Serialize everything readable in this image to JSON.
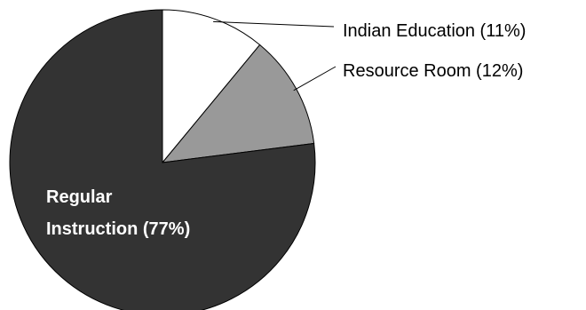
{
  "chart_data": {
    "type": "pie",
    "slices": [
      {
        "label": "Indian Education (11%)",
        "value": 11,
        "color": "#ffffff",
        "label_lines": [
          "Indian Education (11%)"
        ],
        "label_position": "outside"
      },
      {
        "label": "Resource Room (12%)",
        "value": 12,
        "color": "#999999",
        "label_lines": [
          "Resource Room (12%)"
        ],
        "label_position": "outside"
      },
      {
        "label": "Regular Instruction  (77%)",
        "value": 77,
        "color": "#333333",
        "label_lines": [
          "Regular",
          "Instruction  (77%)"
        ],
        "label_position": "inside"
      }
    ],
    "start": "12 o'clock",
    "direction": "clockwise",
    "legend": "none"
  }
}
